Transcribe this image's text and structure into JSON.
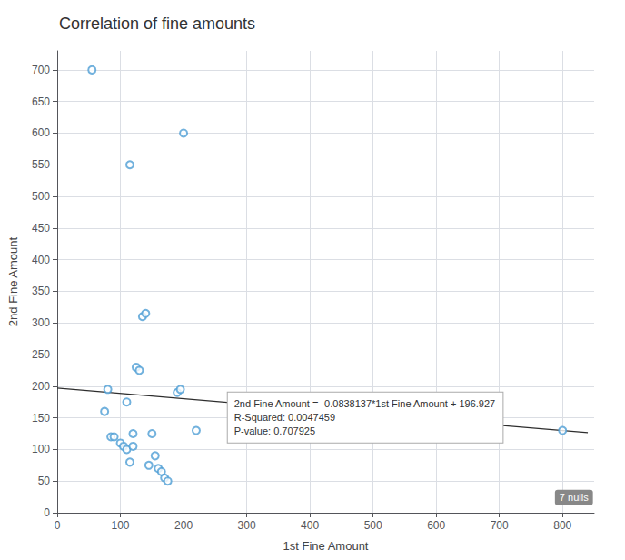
{
  "chart_data": {
    "type": "scatter",
    "title": "Correlation of fine amounts",
    "x_label": "1st Fine Amount",
    "y_label": "2nd Fine Amount",
    "xlim": [
      0,
      850
    ],
    "ylim": [
      0,
      730
    ],
    "xticks": [
      0,
      100,
      200,
      300,
      400,
      500,
      600,
      700,
      800
    ],
    "yticks": [
      0,
      50,
      100,
      150,
      200,
      250,
      300,
      350,
      400,
      450,
      500,
      550,
      600,
      650,
      700
    ],
    "grid": true,
    "series": [
      {
        "type": "scatter",
        "marker": "circle",
        "color": "#4E9ED4",
        "x": [
          55,
          75,
          80,
          85,
          90,
          100,
          105,
          110,
          110,
          115,
          120,
          120,
          125,
          130,
          135,
          140,
          145,
          150,
          155,
          160,
          165,
          170,
          175,
          190,
          195,
          200,
          115,
          220,
          800
        ],
        "values": [
          700,
          160,
          195,
          120,
          120,
          110,
          105,
          100,
          175,
          80,
          125,
          105,
          230,
          225,
          310,
          315,
          75,
          125,
          90,
          70,
          65,
          55,
          50,
          190,
          195,
          600,
          550,
          130,
          130
        ]
      },
      {
        "type": "line",
        "line_style": "solid",
        "color": "#2d2d2d",
        "x": [
          0,
          840
        ],
        "values": [
          196.927,
          126.523492
        ]
      }
    ],
    "annotations": [
      {
        "text": "2nd Fine Amount = -0.0838137*1st Fine Amount + 196.927\nR-Squared: 0.0047459\nP-value: 0.707925",
        "x": 270,
        "y": 190
      },
      {
        "text": "7 nulls",
        "x": 818,
        "y": 12
      }
    ]
  }
}
